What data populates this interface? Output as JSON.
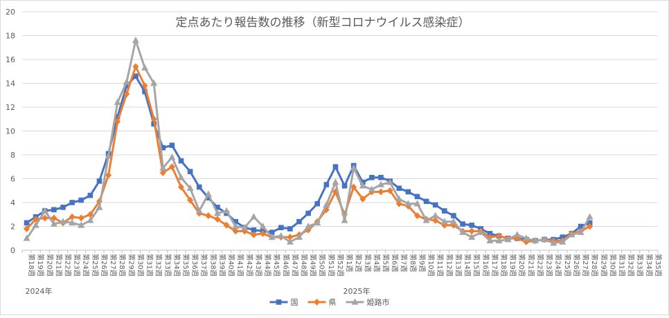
{
  "chart_data": {
    "type": "line",
    "title": "定点あたり報告数の推移（新型コロナウイルス感染症）",
    "xlabel": "",
    "ylabel": "",
    "ylim": [
      0,
      20
    ],
    "yticks": [
      "0",
      "2",
      "4",
      "6",
      "8",
      "10",
      "12",
      "14",
      "16",
      "18",
      "20"
    ],
    "grid": true,
    "legend_position": "bottom",
    "year_labels": [
      "2024年",
      "2025年"
    ],
    "categories": [
      "第18週",
      "第19週",
      "第20週",
      "第21週",
      "第22週",
      "第23週",
      "第24週",
      "第25週",
      "第26週",
      "第27週",
      "第28週",
      "第29週",
      "第30週",
      "第31週",
      "第32週",
      "第33週",
      "第34週",
      "第35週",
      "第36週",
      "第37週",
      "第38週",
      "第39週",
      "第40週",
      "第41週",
      "第42週",
      "第43週",
      "第44週",
      "第45週",
      "第46週",
      "第47週",
      "第48週",
      "第49週",
      "第50週",
      "第51週",
      "第52週",
      "第1週",
      "第2週",
      "第3週",
      "第4週",
      "第5週",
      "第6週",
      "第7週",
      "第8週",
      "第9週",
      "第10週",
      "第11週",
      "第12週",
      "第13週",
      "第14週",
      "第15週",
      "第16週",
      "第17週",
      "第18週",
      "第19週",
      "第20週",
      "第21週",
      "第22週",
      "第23週",
      "第24週",
      "第25週",
      "第26週",
      "第27週",
      "第28週",
      "第29週",
      "第30週",
      "第31週",
      "第32週",
      "第33週",
      "第34週",
      "第35週"
    ],
    "series": [
      {
        "name": "国",
        "color": "#4472C4",
        "marker": "square",
        "values": [
          2.3,
          2.8,
          3.3,
          3.4,
          3.6,
          4.0,
          4.2,
          4.6,
          5.8,
          8.1,
          11.2,
          13.8,
          14.6,
          13.3,
          10.6,
          8.6,
          8.8,
          7.5,
          6.6,
          5.3,
          4.4,
          3.6,
          3.1,
          2.4,
          1.9,
          1.7,
          1.6,
          1.5,
          1.9,
          1.8,
          2.4,
          3.1,
          3.9,
          5.5,
          7.0,
          5.4,
          7.1,
          5.7,
          6.1,
          6.1,
          5.8,
          5.2,
          4.9,
          4.5,
          4.1,
          3.8,
          3.3,
          2.9,
          2.2,
          2.1,
          1.8,
          1.4,
          1.2,
          1.0,
          1.0,
          0.9,
          0.8,
          0.9,
          0.9,
          1.1,
          1.4,
          2.0,
          2.3,
          null,
          null,
          null,
          null,
          null,
          null,
          null
        ]
      },
      {
        "name": "県",
        "color": "#ED7D31",
        "marker": "diamond",
        "values": [
          1.8,
          2.6,
          2.7,
          2.7,
          2.3,
          2.8,
          2.7,
          3.0,
          4.1,
          6.3,
          10.8,
          13.1,
          15.4,
          13.8,
          11.0,
          6.5,
          7.0,
          5.3,
          4.2,
          3.1,
          2.9,
          2.6,
          2.1,
          1.6,
          1.6,
          1.3,
          1.4,
          1.1,
          1.1,
          1.1,
          1.3,
          1.7,
          2.4,
          3.4,
          4.9,
          3.0,
          5.3,
          4.3,
          4.9,
          4.9,
          5.0,
          3.9,
          3.7,
          2.9,
          2.6,
          2.5,
          2.1,
          2.1,
          1.6,
          1.6,
          1.6,
          1.1,
          1.2,
          1.0,
          1.0,
          0.7,
          0.8,
          0.9,
          0.8,
          0.8,
          1.4,
          1.6,
          2.0,
          null,
          null,
          null,
          null,
          null,
          null,
          null
        ]
      },
      {
        "name": "姫路市",
        "color": "#A5A5A5",
        "marker": "triangle",
        "values": [
          1.0,
          2.1,
          3.3,
          2.2,
          2.4,
          2.3,
          2.1,
          2.5,
          3.6,
          7.9,
          12.4,
          14.1,
          17.6,
          15.3,
          14.0,
          6.9,
          7.8,
          6.1,
          5.2,
          3.3,
          4.7,
          3.1,
          3.3,
          2.0,
          1.9,
          2.8,
          2.0,
          1.1,
          1.2,
          0.7,
          1.1,
          2.0,
          2.3,
          3.8,
          5.7,
          2.5,
          6.9,
          5.4,
          5.1,
          5.5,
          5.7,
          4.3,
          3.9,
          3.9,
          2.5,
          2.9,
          2.4,
          2.4,
          1.5,
          1.1,
          1.5,
          0.8,
          0.8,
          0.9,
          1.3,
          1.0,
          0.8,
          0.9,
          0.6,
          0.7,
          1.3,
          1.5,
          2.8,
          null,
          null,
          null,
          null,
          null,
          null,
          null
        ]
      }
    ]
  }
}
